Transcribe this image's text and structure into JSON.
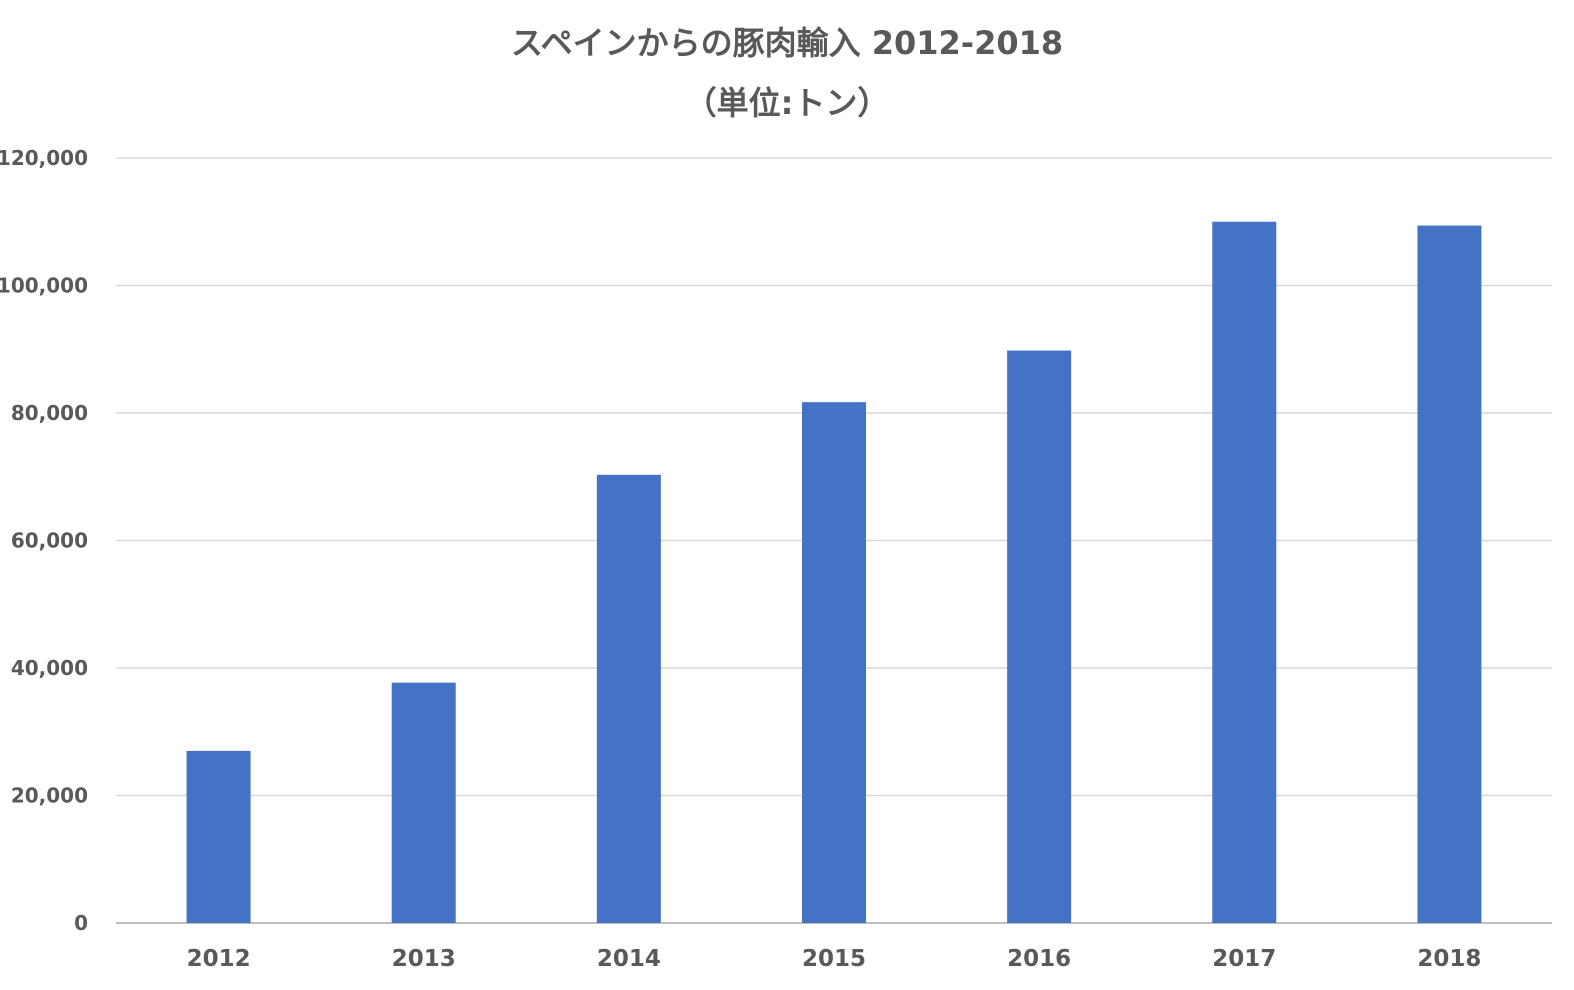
{
  "chart_data": {
    "type": "bar",
    "title": "スペインからの豚肉輸入 2012-2018",
    "subtitle": "（単位:トン）",
    "categories": [
      "2012",
      "2013",
      "2014",
      "2015",
      "2016",
      "2017",
      "2018"
    ],
    "values": [
      27000,
      37700,
      70300,
      81700,
      89800,
      110000,
      109400
    ],
    "ylim": [
      0,
      120000
    ],
    "y_ticks": [
      "0",
      "20,000",
      "40,000",
      "60,000",
      "80,000",
      "100,000",
      "120,000"
    ],
    "y_tick_values": [
      0,
      20000,
      40000,
      60000,
      80000,
      100000,
      120000
    ],
    "grid": true,
    "legend": "none",
    "colors": {
      "bar": "#4472C4",
      "grid": "#D9D9D9",
      "text": "#595959"
    }
  }
}
